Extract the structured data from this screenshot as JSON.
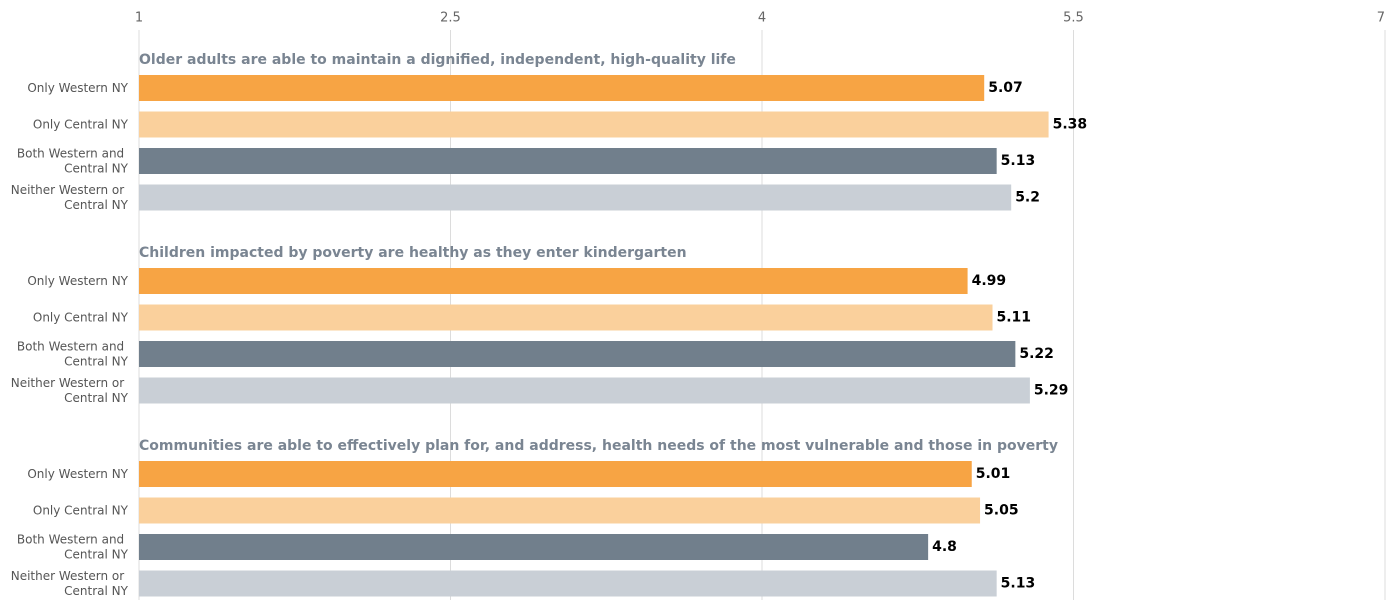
{
  "chart_data": {
    "type": "bar",
    "orientation": "horizontal",
    "xlim": [
      1,
      7
    ],
    "xticks": [
      1,
      2.5,
      4,
      5.5,
      7
    ],
    "grid": true,
    "colors": [
      "#f7a444",
      "#fad09c",
      "#717f8c",
      "#c9cfd6"
    ],
    "groups": [
      {
        "title": "Older adults are able to maintain a dignified, independent, high-quality life",
        "categories": [
          "Only Western NY",
          "Only Central NY",
          "Both Western and Central NY",
          "Neither Western or Central NY"
        ],
        "values": [
          5.07,
          5.38,
          5.13,
          5.2
        ]
      },
      {
        "title": "Children impacted by poverty are healthy as they enter kindergarten",
        "categories": [
          "Only Western NY",
          "Only Central NY",
          "Both Western and Central NY",
          "Neither Western or Central NY"
        ],
        "values": [
          4.99,
          5.11,
          5.22,
          5.29
        ]
      },
      {
        "title": "Communities are able to effectively plan for, and address, health needs of the most vulnerable and those in poverty",
        "categories": [
          "Only Western NY",
          "Only Central NY",
          "Both Western and Central NY",
          "Neither Western or Central NY"
        ],
        "values": [
          5.01,
          5.05,
          4.8,
          5.13
        ]
      }
    ]
  }
}
